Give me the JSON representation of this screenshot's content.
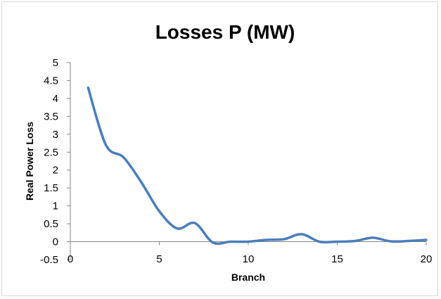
{
  "chart_data": {
    "type": "line",
    "title": "Losses P (MW)",
    "xlabel": "Branch",
    "ylabel": "Real Power Loss",
    "xlim": [
      0,
      20
    ],
    "ylim": [
      -0.5,
      5
    ],
    "x_ticks": [
      0,
      5,
      10,
      15,
      20
    ],
    "y_ticks": [
      -0.5,
      0,
      0.5,
      1,
      1.5,
      2,
      2.5,
      3,
      3.5,
      4,
      4.5,
      5
    ],
    "grid": false,
    "legend": "none",
    "smooth": true,
    "line_color": "#4a7ebb",
    "x": [
      1,
      2,
      3,
      4,
      5,
      6,
      7,
      8,
      9,
      10,
      11,
      12,
      13,
      14,
      15,
      16,
      17,
      18,
      19,
      20
    ],
    "series": [
      {
        "values": [
          4.3,
          2.7,
          2.35,
          1.65,
          0.85,
          0.37,
          0.52,
          -0.02,
          0.0,
          0.0,
          0.05,
          0.07,
          0.21,
          0.0,
          0.0,
          0.02,
          0.11,
          0.01,
          0.02,
          0.05
        ]
      }
    ]
  }
}
